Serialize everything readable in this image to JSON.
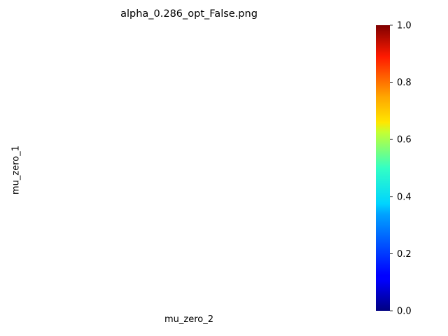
{
  "chart_data": {
    "type": "heatmap",
    "title": "alpha_0.286_opt_False.png",
    "xlabel": "mu_zero_2",
    "ylabel": "mu_zero_1",
    "cells": [],
    "colorbar": {
      "colormap": "jet",
      "range": [
        0.0,
        1.0
      ],
      "ticks": [
        0.0,
        0.2,
        0.4,
        0.6,
        0.8,
        1.0
      ],
      "tick_labels": [
        "0.0",
        "0.2",
        "0.4",
        "0.6",
        "0.8",
        "1.0"
      ]
    }
  }
}
